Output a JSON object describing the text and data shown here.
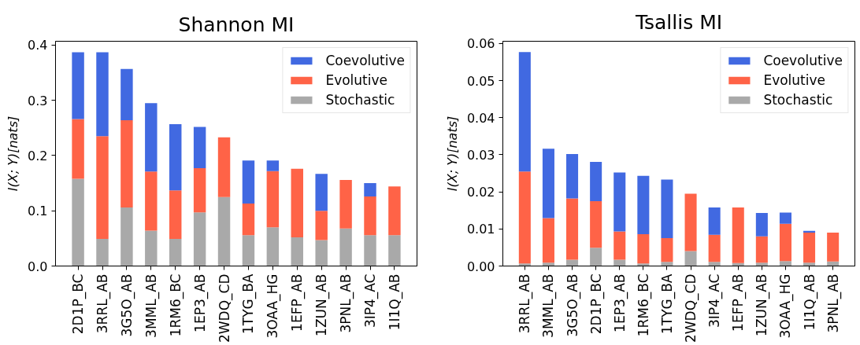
{
  "chart_data": [
    {
      "type": "bar",
      "title": "Shannon MI",
      "ylabel": "I(X; Y)[nats]",
      "stacked": true,
      "legend": "top right",
      "categories": [
        "2D1P_BC",
        "3RRL_AB",
        "3G5O_AB",
        "3MML_AB",
        "1RM6_BC",
        "1EP3_AB",
        "2WDQ_CD",
        "1TYG_BA",
        "3OAA_HG",
        "1EFP_AB",
        "1ZUN_AB",
        "3PNL_AB",
        "3IP4_AC",
        "1I1Q_AB"
      ],
      "series": [
        {
          "name": "Stochastic",
          "color": "#a9a9a9",
          "values": [
            0.158,
            0.049,
            0.106,
            0.064,
            0.049,
            0.097,
            0.125,
            0.056,
            0.07,
            0.052,
            0.047,
            0.068,
            0.056,
            0.056
          ]
        },
        {
          "name": "Evolutive",
          "color": "#ff6347",
          "values": [
            0.108,
            0.186,
            0.158,
            0.107,
            0.088,
            0.08,
            0.108,
            0.057,
            0.102,
            0.124,
            0.053,
            0.088,
            0.07,
            0.088
          ]
        },
        {
          "name": "Coevolutive",
          "color": "#4169e1",
          "values": [
            0.121,
            0.152,
            0.093,
            0.124,
            0.12,
            0.075,
            null,
            0.078,
            0.019,
            null,
            0.067,
            null,
            0.024,
            null
          ]
        }
      ],
      "ylim": [
        0,
        0.407
      ],
      "yticks": [
        {
          "value": 0,
          "label": "0.0"
        },
        0.1,
        0.2,
        0.3,
        0.4
      ]
    },
    {
      "type": "bar",
      "title": "Tsallis MI",
      "ylabel": "I(X; Y)[nats]",
      "stacked": true,
      "legend": "top right",
      "categories": [
        "3RRL_AB",
        "3MML_AB",
        "3G5O_AB",
        "2D1P_BC",
        "1EP3_AB",
        "1RM6_BC",
        "1TYG_BA",
        "2WDQ_CD",
        "3IP4_AC",
        "1EFP_AB",
        "1ZUN_AB",
        "3OAA_HG",
        "1I1Q_AB",
        "3PNL_AB"
      ],
      "series": [
        {
          "name": "Stochastic",
          "color": "#a9a9a9",
          "values": [
            0.0007,
            0.0009,
            0.0017,
            0.0049,
            0.0017,
            0.0007,
            0.0011,
            0.004,
            0.0011,
            0.0008,
            0.0009,
            0.0013,
            0.0009,
            0.0012
          ]
        },
        {
          "name": "Evolutive",
          "color": "#ff6347",
          "values": [
            0.0248,
            0.012,
            0.0165,
            0.0126,
            0.0076,
            0.0079,
            0.0064,
            0.0155,
            0.0073,
            0.015,
            0.0071,
            0.0101,
            0.0081,
            0.0078
          ]
        },
        {
          "name": "Coevolutive",
          "color": "#4169e1",
          "values": [
            0.0322,
            0.0187,
            0.012,
            0.0106,
            0.0159,
            0.0157,
            0.0158,
            null,
            0.0074,
            null,
            0.0063,
            0.003,
            0.0005,
            null
          ]
        }
      ],
      "ylim": [
        0,
        0.0606
      ],
      "yticks": [
        {
          "value": 0,
          "label": "0.00"
        },
        0.01,
        0.02,
        0.03,
        0.04,
        0.05,
        0.06
      ]
    }
  ]
}
